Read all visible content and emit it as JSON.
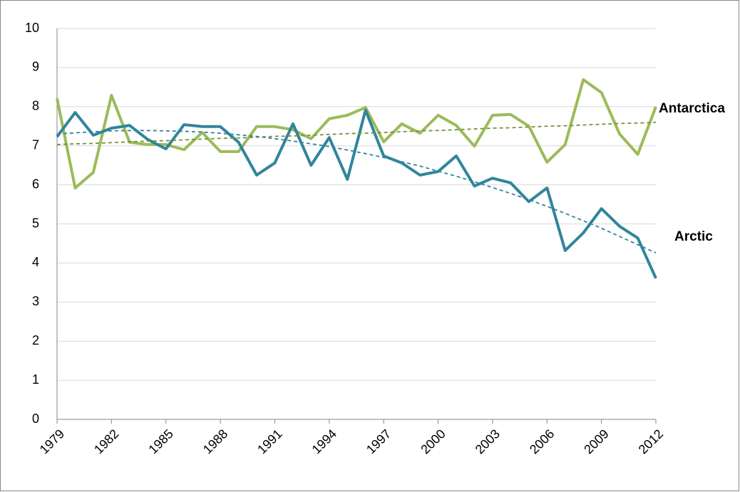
{
  "chart_data": {
    "type": "line",
    "x": [
      1979,
      1980,
      1981,
      1982,
      1983,
      1984,
      1985,
      1986,
      1987,
      1988,
      1989,
      1990,
      1991,
      1992,
      1993,
      1994,
      1995,
      1996,
      1997,
      1998,
      1999,
      2000,
      2001,
      2002,
      2003,
      2004,
      2005,
      2006,
      2007,
      2008,
      2009,
      2010,
      2011,
      2012
    ],
    "xlim": [
      1979,
      2012
    ],
    "xticks": [
      1979,
      1982,
      1985,
      1988,
      1991,
      1994,
      1997,
      2000,
      2003,
      2006,
      2009,
      2012
    ],
    "ylim": [
      0,
      10
    ],
    "yticks": [
      0,
      1,
      2,
      3,
      4,
      5,
      6,
      7,
      8,
      9,
      10
    ],
    "grid": true,
    "series": [
      {
        "name": "Antarctica",
        "color": "#9bbb59",
        "trend_color": "#76923c",
        "values": [
          8.21,
          5.92,
          6.32,
          8.29,
          7.09,
          7.03,
          7.03,
          6.9,
          7.34,
          6.85,
          6.85,
          7.49,
          7.49,
          7.41,
          7.18,
          7.69,
          7.78,
          7.98,
          7.1,
          7.56,
          7.32,
          7.78,
          7.52,
          6.99,
          7.78,
          7.8,
          7.5,
          6.58,
          7.03,
          8.69,
          8.36,
          7.3,
          6.78,
          8.0
        ],
        "trend": [
          7.03,
          7.05,
          7.06,
          7.08,
          7.1,
          7.12,
          7.13,
          7.15,
          7.17,
          7.19,
          7.2,
          7.22,
          7.24,
          7.25,
          7.27,
          7.29,
          7.31,
          7.32,
          7.34,
          7.36,
          7.38,
          7.39,
          7.41,
          7.43,
          7.45,
          7.46,
          7.48,
          7.5,
          7.51,
          7.53,
          7.55,
          7.57,
          7.58,
          7.6
        ]
      },
      {
        "name": "Arctic",
        "color": "#31859c",
        "trend_color": "#31859c",
        "values": [
          7.23,
          7.85,
          7.27,
          7.45,
          7.52,
          7.16,
          6.92,
          7.54,
          7.49,
          7.49,
          7.09,
          6.25,
          6.56,
          7.56,
          6.5,
          7.21,
          6.14,
          7.91,
          6.74,
          6.56,
          6.25,
          6.34,
          6.74,
          5.97,
          6.17,
          6.05,
          5.57,
          5.92,
          4.32,
          4.77,
          5.39,
          4.94,
          4.64,
          3.61
        ],
        "trend": [
          7.3,
          7.33,
          7.36,
          7.38,
          7.39,
          7.39,
          7.38,
          7.37,
          7.35,
          7.32,
          7.28,
          7.24,
          7.18,
          7.12,
          7.05,
          6.98,
          6.89,
          6.8,
          6.7,
          6.59,
          6.48,
          6.35,
          6.22,
          6.08,
          5.93,
          5.78,
          5.62,
          5.45,
          5.27,
          5.08,
          4.89,
          4.68,
          4.47,
          4.26
        ]
      }
    ]
  }
}
